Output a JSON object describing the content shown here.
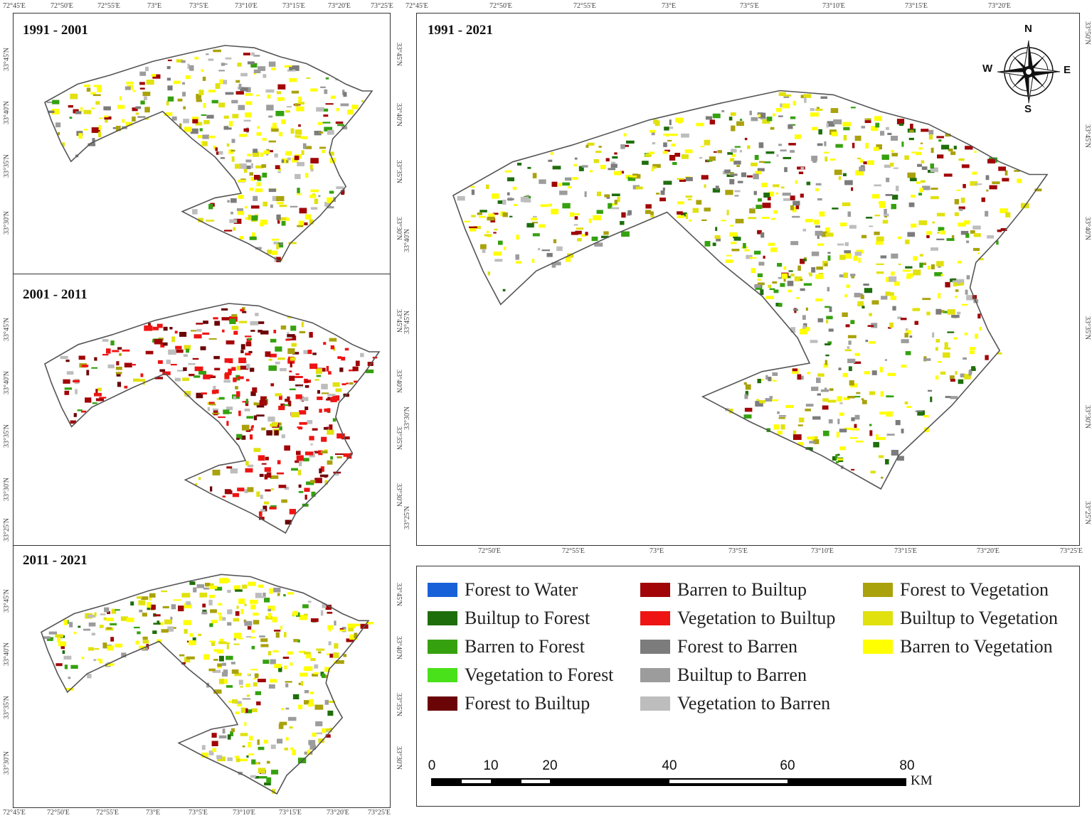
{
  "panels": {
    "p1": {
      "title": "1991 - 2001"
    },
    "p2": {
      "title": "2001 - 2011"
    },
    "p3": {
      "title": "2011 - 2021"
    },
    "main": {
      "title": "1991 - 2021"
    }
  },
  "axes": {
    "lon_labels": [
      "72°45'E",
      "72°50'E",
      "72°55'E",
      "73°E",
      "73°5'E",
      "73°10'E",
      "73°15'E",
      "73°20'E",
      "73°25'E"
    ],
    "lat_left_small": [
      "33°45'N",
      "33°40'N",
      "33°35'N",
      "33°30'N"
    ],
    "lat_left_mid": [
      "33°45'N",
      "33°40'N",
      "33°35'N",
      "33°30'N",
      "33°25'N"
    ],
    "lat_right_main": [
      "33°50'N",
      "33°45'N",
      "33°40'N",
      "33°35'N",
      "33°30'N",
      "33°25'N"
    ]
  },
  "compass": {
    "n": "N",
    "s": "S",
    "e": "E",
    "w": "W"
  },
  "legend": {
    "items": [
      {
        "label": "Forest to Water",
        "color": "#1860d8"
      },
      {
        "label": "Builtup to Forest",
        "color": "#1f6e0c"
      },
      {
        "label": "Barren to Forest",
        "color": "#35a10f"
      },
      {
        "label": "Vegetation to Forest",
        "color": "#49e11a"
      },
      {
        "label": "Forest to Builtup",
        "color": "#6b0406"
      },
      {
        "label": "Barren to Builtup",
        "color": "#a10507"
      },
      {
        "label": "Vegetation to Builtup",
        "color": "#ee1414"
      },
      {
        "label": "Forest to Barren",
        "color": "#7c7c7c"
      },
      {
        "label": "Builtup to Barren",
        "color": "#9c9c9c"
      },
      {
        "label": "Vegetation to Barren",
        "color": "#bdbdbd"
      },
      {
        "label": "Forest to Vegetation",
        "color": "#aaa20c"
      },
      {
        "label": "Builtup to Vegetation",
        "color": "#e1e10e"
      },
      {
        "label": "Barren to Vegetation",
        "color": "#ffff00"
      }
    ]
  },
  "scalebar": {
    "ticks": [
      "0",
      "10",
      "20",
      "40",
      "60",
      "80"
    ],
    "unit": "KM"
  }
}
